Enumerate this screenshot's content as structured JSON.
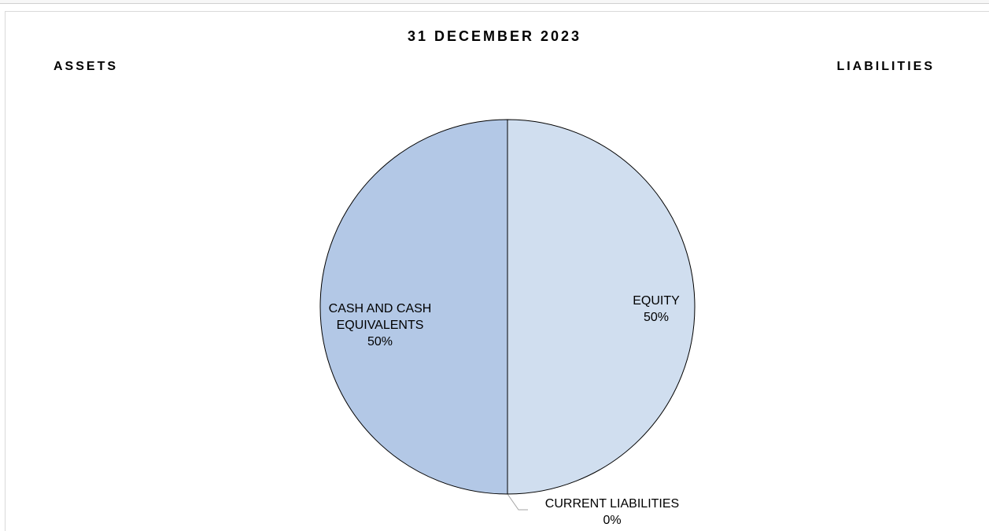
{
  "chart_data": {
    "type": "pie",
    "title": "31 DECEMBER 2023",
    "left_heading": "ASSETS",
    "right_heading": "LIABILITIES",
    "slices": [
      {
        "label": "EQUITY",
        "value": 50,
        "percent_label": "50%",
        "color": "#d0deef"
      },
      {
        "label": "CURRENT LIABILITIES",
        "value": 0,
        "percent_label": "0%",
        "color": "#c5d5ea"
      },
      {
        "label": "CASH AND CASH EQUIVALENTS",
        "value": 50,
        "percent_label": "50%",
        "color": "#b3c8e6"
      }
    ],
    "legend": "none"
  }
}
